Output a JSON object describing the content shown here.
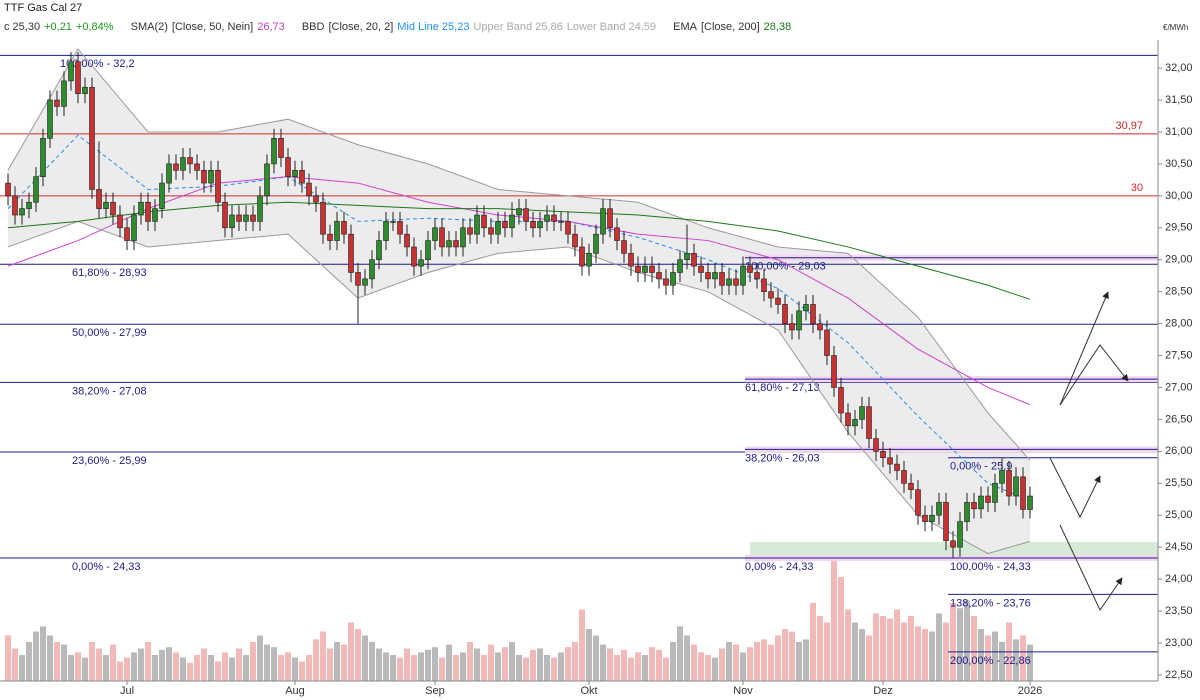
{
  "header": {
    "title": "TTF Gas Cal 27",
    "last": "c 25,30",
    "change": "+0,21",
    "change_pct": "+0,84%",
    "sma_name": "SMA(2)",
    "sma_params": "[Close, 50, Nein]",
    "sma_value": "26,73",
    "bb_name": "BBD",
    "bb_params": "[Close, 20, 2]",
    "bb_mid": "Mid Line 25,23",
    "bb_upper": "Upper Band 25,86",
    "bb_lower": "Lower Band 24,59",
    "ema_name": "EMA",
    "ema_params": "[Close, 200]",
    "ema_value": "28,38"
  },
  "chart_data": {
    "type": "candlestick",
    "unit": "€/MWh",
    "ylim": [
      22.42,
      32.44
    ],
    "yticks": [
      {
        "value": 22.5,
        "label": "22,50"
      },
      {
        "value": 23,
        "label": "23,00"
      },
      {
        "value": 23.5,
        "label": "23,50"
      },
      {
        "value": 24,
        "label": "24,00"
      },
      {
        "value": 24.5,
        "label": "24,50"
      },
      {
        "value": 25,
        "label": "25,00"
      },
      {
        "value": 25.5,
        "label": "25,50"
      },
      {
        "value": 26,
        "label": "26,00"
      },
      {
        "value": 26.5,
        "label": "26,50"
      },
      {
        "value": 27,
        "label": "27,00"
      },
      {
        "value": 27.5,
        "label": "27,50"
      },
      {
        "value": 28,
        "label": "28,00"
      },
      {
        "value": 28.5,
        "label": "28,50"
      },
      {
        "value": 29,
        "label": "29,00"
      },
      {
        "value": 29.5,
        "label": "29,50"
      },
      {
        "value": 30,
        "label": "30,00"
      },
      {
        "value": 30.5,
        "label": "30,50"
      },
      {
        "value": 31,
        "label": "31,00"
      },
      {
        "value": 31.5,
        "label": "31,50"
      },
      {
        "value": 32,
        "label": "32,00"
      }
    ],
    "xticks": [
      {
        "value": 17,
        "label": "Jul"
      },
      {
        "value": 41,
        "label": "Aug"
      },
      {
        "value": 61,
        "label": "Sep"
      },
      {
        "value": 83,
        "label": "Okt"
      },
      {
        "value": 105,
        "label": "Nov"
      },
      {
        "value": 125,
        "label": "Dez"
      },
      {
        "value": 146,
        "label": "2026"
      }
    ],
    "colors": {
      "up": "#2e8b2e",
      "down": "#c83232",
      "volume_up": "#b9b9b9",
      "volume_down": "#f2b9b9"
    },
    "open": [
      30.2,
      30.0,
      29.7,
      29.8,
      29.9,
      30.3,
      30.9,
      31.5,
      31.4,
      31.8,
      32.1,
      31.6,
      31.7,
      30.1,
      29.8,
      29.9,
      29.7,
      29.5,
      29.3,
      29.7,
      29.9,
      29.6,
      29.8,
      30.2,
      30.5,
      30.4,
      30.6,
      30.5,
      30.4,
      30.2,
      30.4,
      29.9,
      29.5,
      29.7,
      29.6,
      29.7,
      29.6,
      30.0,
      30.5,
      30.9,
      30.6,
      30.3,
      30.4,
      30.2,
      30.0,
      29.9,
      29.4,
      29.3,
      29.6,
      29.4,
      28.8,
      28.6,
      28.7,
      29.0,
      29.3,
      29.6,
      29.6,
      29.4,
      29.2,
      28.9,
      29.0,
      29.3,
      29.5,
      29.2,
      29.3,
      29.2,
      29.5,
      29.4,
      29.7,
      29.5,
      29.4,
      29.6,
      29.5,
      29.7,
      29.8,
      29.6,
      29.5,
      29.6,
      29.7,
      29.6,
      29.6,
      29.4,
      29.2,
      28.9,
      29.1,
      29.4,
      29.8,
      29.5,
      29.3,
      29.1,
      28.9,
      28.8,
      28.9,
      28.8,
      28.7,
      28.6,
      28.8,
      29.0,
      29.1,
      28.9,
      28.8,
      28.7,
      28.8,
      28.6,
      28.7,
      28.6,
      28.9,
      28.8,
      28.7,
      28.5,
      28.4,
      28.3,
      28.0,
      27.9,
      28.2,
      28.3,
      28.0,
      27.9,
      27.5,
      27.0,
      26.6,
      26.4,
      26.5,
      26.7,
      26.2,
      26.0,
      25.9,
      25.8,
      25.7,
      25.5,
      25.4,
      25.0,
      24.9,
      25.0,
      25.2,
      24.6,
      24.5,
      24.9,
      25.2,
      25.1,
      25.3,
      25.2,
      25.5,
      25.7,
      25.3,
      25.6,
      25.09
    ],
    "high": [
      30.35,
      30.15,
      29.95,
      30.05,
      30.45,
      31.05,
      31.65,
      31.65,
      31.95,
      32.25,
      32.25,
      31.85,
      31.85,
      30.85,
      30.05,
      30.05,
      29.85,
      29.65,
      29.85,
      30.05,
      30.05,
      29.95,
      30.35,
      30.65,
      30.65,
      30.75,
      30.75,
      30.65,
      30.55,
      30.55,
      30.55,
      30.05,
      29.85,
      29.85,
      29.85,
      29.85,
      30.15,
      30.65,
      31.05,
      31.05,
      30.75,
      30.55,
      30.55,
      30.35,
      30.15,
      30.05,
      29.55,
      29.75,
      29.75,
      29.55,
      28.95,
      28.85,
      29.15,
      29.45,
      29.75,
      29.75,
      29.75,
      29.55,
      29.35,
      29.15,
      29.45,
      29.65,
      29.65,
      29.45,
      29.45,
      29.65,
      29.65,
      29.85,
      29.85,
      29.65,
      29.75,
      29.75,
      29.9,
      29.95,
      29.95,
      29.75,
      29.75,
      29.85,
      29.85,
      29.75,
      29.75,
      29.55,
      29.35,
      29.25,
      29.55,
      29.95,
      29.95,
      29.65,
      29.45,
      29.25,
      29.05,
      29.05,
      29.05,
      28.95,
      28.85,
      28.95,
      29.15,
      29.55,
      29.25,
      29.05,
      28.95,
      28.95,
      28.95,
      28.85,
      28.85,
      29.05,
      29.05,
      28.95,
      28.85,
      28.65,
      28.55,
      28.45,
      28.15,
      28.35,
      28.45,
      28.45,
      28.15,
      28.05,
      27.65,
      27.15,
      26.75,
      26.65,
      26.85,
      26.85,
      26.35,
      26.15,
      26.05,
      25.95,
      25.85,
      25.65,
      25.55,
      25.15,
      25.15,
      25.35,
      25.35,
      24.75,
      25.05,
      25.35,
      25.35,
      25.45,
      25.45,
      25.65,
      25.9,
      25.85,
      25.75,
      25.75,
      25.45
    ],
    "low": [
      29.85,
      29.55,
      29.55,
      29.65,
      29.75,
      30.15,
      30.75,
      31.25,
      31.25,
      31.65,
      31.45,
      31.45,
      29.95,
      29.65,
      29.65,
      29.55,
      29.35,
      29.15,
      29.15,
      29.55,
      29.45,
      29.45,
      29.65,
      30.05,
      30.25,
      30.25,
      30.35,
      30.25,
      30.05,
      30.05,
      29.75,
      29.35,
      29.35,
      29.45,
      29.45,
      29.45,
      29.45,
      29.85,
      30.35,
      30.45,
      30.15,
      30.15,
      30.05,
      29.85,
      29.75,
      29.25,
      29.15,
      29.15,
      29.25,
      28.65,
      28.0,
      28.45,
      28.55,
      28.85,
      29.15,
      29.45,
      29.25,
      29.05,
      28.75,
      28.75,
      28.85,
      29.15,
      29.05,
      29.05,
      29.05,
      29.05,
      29.25,
      29.25,
      29.35,
      29.25,
      29.25,
      29.35,
      29.35,
      29.55,
      29.45,
      29.35,
      29.35,
      29.45,
      29.45,
      29.45,
      29.25,
      29.05,
      28.75,
      28.75,
      28.95,
      29.25,
      29.35,
      29.15,
      28.95,
      28.75,
      28.65,
      28.65,
      28.65,
      28.55,
      28.45,
      28.45,
      28.65,
      28.85,
      28.75,
      28.65,
      28.55,
      28.55,
      28.45,
      28.45,
      28.45,
      28.45,
      28.65,
      28.55,
      28.35,
      28.25,
      28.15,
      27.85,
      27.75,
      27.75,
      28.05,
      27.85,
      27.75,
      27.35,
      26.85,
      26.45,
      26.25,
      26.25,
      26.35,
      26.05,
      25.85,
      25.75,
      25.65,
      25.55,
      25.35,
      25.25,
      24.85,
      24.75,
      24.75,
      24.85,
      24.45,
      24.33,
      24.35,
      24.75,
      24.95,
      24.95,
      25.05,
      25.05,
      25.35,
      25.15,
      25.15,
      24.95,
      24.95
    ],
    "close": [
      30.0,
      29.7,
      29.8,
      29.9,
      30.3,
      30.9,
      31.5,
      31.4,
      31.8,
      32.1,
      31.6,
      31.7,
      30.1,
      29.8,
      29.9,
      29.7,
      29.5,
      29.3,
      29.7,
      29.9,
      29.6,
      29.8,
      30.2,
      30.5,
      30.4,
      30.6,
      30.5,
      30.4,
      30.2,
      30.4,
      29.9,
      29.5,
      29.7,
      29.6,
      29.7,
      29.6,
      30.0,
      30.5,
      30.9,
      30.6,
      30.3,
      30.4,
      30.2,
      30.0,
      29.9,
      29.4,
      29.3,
      29.6,
      29.4,
      28.8,
      28.6,
      28.7,
      29.0,
      29.3,
      29.6,
      29.6,
      29.4,
      29.2,
      28.9,
      29.0,
      29.3,
      29.5,
      29.2,
      29.3,
      29.2,
      29.5,
      29.4,
      29.7,
      29.5,
      29.4,
      29.6,
      29.5,
      29.7,
      29.8,
      29.6,
      29.5,
      29.6,
      29.7,
      29.6,
      29.6,
      29.4,
      29.2,
      28.9,
      29.1,
      29.4,
      29.8,
      29.5,
      29.3,
      29.1,
      28.9,
      28.8,
      28.9,
      28.8,
      28.7,
      28.6,
      28.8,
      29.0,
      29.1,
      28.9,
      28.8,
      28.7,
      28.8,
      28.6,
      28.7,
      28.6,
      28.9,
      28.8,
      28.7,
      28.5,
      28.4,
      28.3,
      28.0,
      27.9,
      28.2,
      28.3,
      28.0,
      27.9,
      27.5,
      27.0,
      26.6,
      26.4,
      26.5,
      26.7,
      26.2,
      26.0,
      25.9,
      25.8,
      25.7,
      25.5,
      25.4,
      25.0,
      24.9,
      25.0,
      25.2,
      24.6,
      24.5,
      24.9,
      25.2,
      25.1,
      25.3,
      25.2,
      25.5,
      25.7,
      25.3,
      25.6,
      25.09,
      25.3
    ],
    "vlim": [
      0,
      100
    ],
    "volume": [
      35,
      25,
      20,
      30,
      38,
      42,
      35,
      30,
      28,
      20,
      22,
      18,
      30,
      25,
      20,
      28,
      15,
      18,
      22,
      25,
      30,
      20,
      24,
      26,
      22,
      18,
      14,
      20,
      25,
      20,
      15,
      22,
      18,
      25,
      20,
      30,
      35,
      28,
      26,
      20,
      22,
      18,
      15,
      20,
      32,
      38,
      25,
      30,
      28,
      45,
      40,
      35,
      30,
      25,
      22,
      20,
      18,
      25,
      20,
      22,
      24,
      26,
      18,
      28,
      20,
      22,
      30,
      25,
      20,
      28,
      22,
      26,
      30,
      20,
      18,
      24,
      25,
      20,
      18,
      22,
      26,
      30,
      55,
      40,
      35,
      28,
      25,
      20,
      24,
      18,
      22,
      20,
      26,
      24,
      18,
      30,
      42,
      35,
      28,
      22,
      20,
      18,
      25,
      30,
      28,
      22,
      26,
      30,
      32,
      28,
      35,
      40,
      38,
      30,
      32,
      60,
      50,
      45,
      100,
      80,
      55,
      45,
      40,
      35,
      52,
      50,
      48,
      55,
      45,
      50,
      42,
      40,
      38,
      52,
      45,
      60,
      56,
      62,
      50,
      40,
      35,
      38,
      30,
      45,
      32,
      35,
      28
    ],
    "indicators": [
      {
        "color": "#9a9a9a",
        "dash": false,
        "x": [
          0,
          10,
          20,
          30,
          40,
          50,
          60,
          70,
          80,
          90,
          100,
          110,
          120,
          130,
          140,
          146
        ],
        "values": [
          30.4,
          32.3,
          31.0,
          31.0,
          31.2,
          30.8,
          30.5,
          30.1,
          30.0,
          29.9,
          29.5,
          29.2,
          29.1,
          28.1,
          26.6,
          25.86
        ]
      },
      {
        "color": "#9a9a9a",
        "dash": false,
        "x": [
          0,
          10,
          20,
          30,
          40,
          50,
          60,
          70,
          80,
          90,
          100,
          110,
          120,
          130,
          140,
          146
        ],
        "values": [
          29.2,
          29.6,
          29.2,
          29.3,
          29.4,
          28.4,
          28.8,
          29.1,
          29.2,
          28.8,
          28.5,
          27.9,
          26.3,
          25.0,
          24.4,
          24.59
        ]
      },
      {
        "color": "#1e90ff",
        "dash": true,
        "x": [
          0,
          10,
          20,
          30,
          40,
          50,
          60,
          70,
          80,
          90,
          100,
          110,
          120,
          130,
          140,
          146
        ],
        "values": [
          29.8,
          30.95,
          30.1,
          30.15,
          30.3,
          29.6,
          29.65,
          29.6,
          29.6,
          29.35,
          29.0,
          28.55,
          27.7,
          26.55,
          25.5,
          25.23
        ]
      },
      {
        "color": "#d040d0",
        "dash": false,
        "x": [
          0,
          10,
          20,
          30,
          40,
          50,
          60,
          70,
          80,
          90,
          100,
          110,
          120,
          130,
          140,
          146
        ],
        "values": [
          28.9,
          29.3,
          29.8,
          30.2,
          30.3,
          30.2,
          29.9,
          29.7,
          29.6,
          29.4,
          29.3,
          29.0,
          28.4,
          27.6,
          27.0,
          26.73
        ]
      },
      {
        "color": "#1a7a1a",
        "dash": false,
        "x": [
          0,
          10,
          20,
          30,
          40,
          50,
          60,
          70,
          80,
          90,
          100,
          110,
          120,
          130,
          140,
          146
        ],
        "values": [
          29.5,
          29.6,
          29.75,
          29.85,
          29.9,
          29.85,
          29.8,
          29.8,
          29.75,
          29.7,
          29.6,
          29.45,
          29.2,
          28.9,
          28.6,
          28.38
        ]
      }
    ],
    "hlines": [
      {
        "value": 30.97,
        "label": "30,97"
      },
      30
    ],
    "hline_color": "#d42a2a",
    "zone": [
      24.33,
      24.58
    ],
    "fib_color": "#1c1c8c",
    "fib_sets": [
      {
        "levels": [
          {
            "value": 32.2,
            "label": "100,00% - 32,2"
          },
          {
            "value": 28.93,
            "label": "61,80% - 28,93"
          },
          {
            "value": 27.99,
            "label": "50,00% - 27,99"
          },
          {
            "value": 27.08,
            "label": "38,20% - 27,08"
          },
          {
            "value": 25.99,
            "label": "23,60% - 25,99"
          },
          {
            "value": 24.33,
            "label": "0,00% - 24,33"
          }
        ]
      },
      {
        "levels": [
          {
            "value": 29.03,
            "label": "100,00% - 29,03"
          },
          {
            "value": 27.13,
            "label": "61,80% - 27,13"
          },
          {
            "value": 26.03,
            "label": "38,20% - 26,03"
          },
          {
            "value": 24.33,
            "label": "0,00% - 24,33"
          }
        ]
      },
      {
        "levels": [
          {
            "value": 25.9,
            "label": "0,00% - 25,9"
          },
          {
            "value": 24.33,
            "label": "100,00% - 24,33"
          },
          {
            "value": 23.76,
            "label": "138,20% - 23,76"
          },
          {
            "value": 22.86,
            "label": "200,00% - 22,86"
          }
        ]
      }
    ]
  }
}
